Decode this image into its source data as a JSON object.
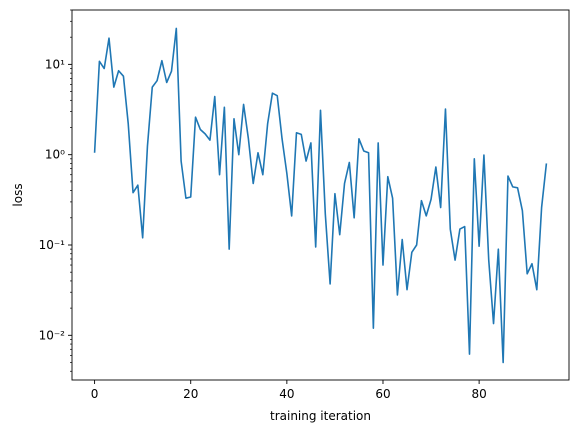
{
  "chart_data": {
    "type": "line",
    "title": "",
    "xlabel": "training iteration",
    "ylabel": "loss",
    "xlim": [
      -4.7,
      98.7
    ],
    "ylim": [
      0.0032,
      40
    ],
    "yscale": "log",
    "grid": false,
    "line_color": "#1f77b4",
    "x_ticks": [
      0,
      20,
      40,
      60,
      80
    ],
    "x_tick_labels": [
      "0",
      "20",
      "40",
      "60",
      "80"
    ],
    "y_ticks": [
      0.01,
      0.1,
      1,
      10
    ],
    "y_tick_labels": [
      "10⁻²",
      "10⁻¹",
      "10⁰",
      "10¹"
    ],
    "series": [
      {
        "x": [
          0,
          1,
          2,
          3,
          4,
          5,
          6,
          7,
          8,
          9,
          10,
          11,
          12,
          13,
          14,
          15,
          16,
          17,
          18,
          19,
          20,
          21,
          22,
          23,
          24,
          25,
          26,
          27,
          28,
          29,
          30,
          31,
          32,
          33,
          34,
          35,
          36,
          37,
          38,
          39,
          40,
          41,
          42,
          43,
          44,
          45,
          46,
          47,
          48,
          49,
          50,
          51,
          52,
          53,
          54,
          55,
          56,
          57,
          58,
          59,
          60,
          61,
          62,
          63,
          64,
          65,
          66,
          67,
          68,
          69,
          70,
          71,
          72,
          73,
          74,
          75,
          76,
          77,
          78,
          79,
          80,
          81,
          82,
          83,
          84,
          85,
          86,
          87,
          88,
          89,
          90,
          91,
          92,
          93,
          94
        ],
        "values": [
          1.05,
          10.8,
          9.0,
          19.5,
          5.6,
          8.5,
          7.4,
          2.2,
          0.38,
          0.46,
          0.12,
          1.25,
          5.6,
          6.6,
          11.0,
          6.3,
          8.4,
          25.0,
          0.85,
          0.33,
          0.34,
          2.6,
          1.9,
          1.7,
          1.45,
          4.4,
          0.6,
          3.35,
          0.09,
          2.5,
          1.0,
          3.6,
          1.5,
          0.48,
          1.05,
          0.6,
          2.2,
          4.8,
          4.5,
          1.5,
          0.62,
          0.21,
          1.75,
          1.68,
          0.85,
          1.35,
          0.095,
          3.1,
          0.22,
          0.037,
          0.37,
          0.13,
          0.48,
          0.82,
          0.2,
          1.5,
          1.1,
          1.05,
          0.012,
          1.35,
          0.06,
          0.57,
          0.33,
          0.028,
          0.115,
          0.032,
          0.083,
          0.1,
          0.31,
          0.21,
          0.32,
          0.73,
          0.26,
          3.2,
          0.15,
          0.068,
          0.15,
          0.16,
          0.0062,
          0.9,
          0.097,
          0.99,
          0.068,
          0.0135,
          0.09,
          0.005,
          0.58,
          0.44,
          0.43,
          0.24,
          0.048,
          0.062,
          0.032,
          0.26,
          0.8
        ]
      }
    ]
  }
}
